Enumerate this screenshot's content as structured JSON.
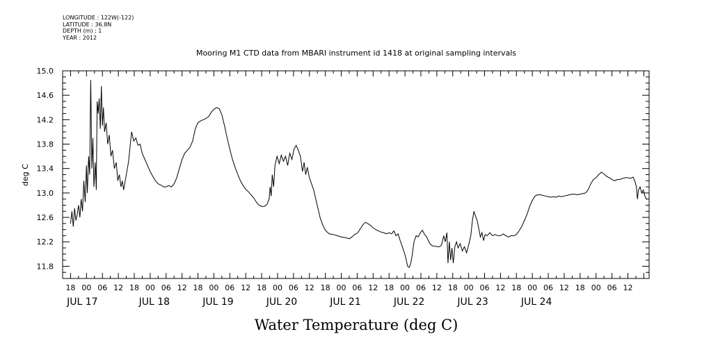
{
  "header": {
    "lines": [
      "LONGITUDE : 122W(-122)",
      "LATITUDE : 36.8N",
      "DEPTH (m) : 1",
      "YEAR : 2012"
    ]
  },
  "chart_data": {
    "type": "line",
    "title": "Mooring M1 CTD data from MBARI instrument id 1418 at original sampling intervals",
    "xlabel": "Water Temperature (deg C)",
    "ylabel": "deg C",
    "ylim": [
      11.6,
      15.0
    ],
    "yticks": [
      "11.8",
      "12.2",
      "12.6",
      "13.0",
      "13.4",
      "13.8",
      "14.2",
      "14.6",
      "15.0"
    ],
    "x_unit": "hours since JUL 17 00:00 (2012)",
    "xlim": [
      -9,
      212
    ],
    "hour_ticks": [
      "18",
      "00",
      "06",
      "12",
      "18",
      "00",
      "06",
      "12",
      "18",
      "00",
      "06",
      "12",
      "18",
      "00",
      "06",
      "12",
      "18",
      "00",
      "06",
      "12",
      "18",
      "00",
      "06",
      "12",
      "18",
      "00",
      "06",
      "12",
      "18",
      "00",
      "06",
      "12",
      "18",
      "00",
      "06",
      "12"
    ],
    "day_labels": [
      "JUL 17",
      "JUL 18",
      "JUL 19",
      "JUL 20",
      "JUL 21",
      "JUL 22",
      "JUL 23",
      "JUL 24"
    ],
    "grid": false,
    "series": [
      {
        "points": [
          [
            -6,
            12.5
          ],
          [
            -5.5,
            12.7
          ],
          [
            -5,
            12.45
          ],
          [
            -4.5,
            12.75
          ],
          [
            -4,
            12.55
          ],
          [
            -3.5,
            12.65
          ],
          [
            -3,
            12.8
          ],
          [
            -2.5,
            12.6
          ],
          [
            -2,
            12.9
          ],
          [
            -1.5,
            12.7
          ],
          [
            -1,
            13.2
          ],
          [
            -0.5,
            12.85
          ],
          [
            0,
            13.45
          ],
          [
            0.3,
            13.0
          ],
          [
            0.8,
            13.6
          ],
          [
            1.2,
            13.3
          ],
          [
            1.6,
            14.85
          ],
          [
            2.0,
            13.4
          ],
          [
            2.4,
            13.9
          ],
          [
            2.8,
            13.1
          ],
          [
            3.3,
            13.5
          ],
          [
            3.7,
            13.05
          ],
          [
            4.0,
            14.5
          ],
          [
            4.4,
            14.3
          ],
          [
            4.8,
            14.55
          ],
          [
            5.2,
            14.05
          ],
          [
            5.6,
            14.75
          ],
          [
            6.0,
            14.1
          ],
          [
            6.4,
            14.4
          ],
          [
            6.8,
            14.0
          ],
          [
            7.4,
            14.15
          ],
          [
            8.0,
            13.8
          ],
          [
            8.6,
            13.95
          ],
          [
            9.2,
            13.6
          ],
          [
            9.8,
            13.7
          ],
          [
            10.5,
            13.4
          ],
          [
            11.2,
            13.5
          ],
          [
            11.8,
            13.2
          ],
          [
            12.4,
            13.3
          ],
          [
            13.0,
            13.1
          ],
          [
            13.5,
            13.2
          ],
          [
            14.0,
            13.05
          ],
          [
            14.6,
            13.2
          ],
          [
            15.2,
            13.35
          ],
          [
            15.8,
            13.5
          ],
          [
            16.4,
            13.75
          ],
          [
            17.0,
            14.0
          ],
          [
            17.8,
            13.85
          ],
          [
            18.6,
            13.9
          ],
          [
            19.4,
            13.78
          ],
          [
            20.2,
            13.8
          ],
          [
            21.0,
            13.65
          ],
          [
            22,
            13.55
          ],
          [
            23,
            13.45
          ],
          [
            24,
            13.35
          ],
          [
            25,
            13.27
          ],
          [
            26,
            13.2
          ],
          [
            27,
            13.15
          ],
          [
            28,
            13.13
          ],
          [
            29,
            13.1
          ],
          [
            30,
            13.1
          ],
          [
            31,
            13.12
          ],
          [
            32,
            13.1
          ],
          [
            33,
            13.15
          ],
          [
            34,
            13.25
          ],
          [
            35,
            13.4
          ],
          [
            36,
            13.55
          ],
          [
            37,
            13.65
          ],
          [
            38,
            13.7
          ],
          [
            39,
            13.75
          ],
          [
            40,
            13.85
          ],
          [
            41,
            14.05
          ],
          [
            42,
            14.15
          ],
          [
            43,
            14.18
          ],
          [
            44,
            14.2
          ],
          [
            45,
            14.22
          ],
          [
            46,
            14.25
          ],
          [
            47,
            14.32
          ],
          [
            48,
            14.37
          ],
          [
            49,
            14.4
          ],
          [
            50,
            14.38
          ],
          [
            51,
            14.28
          ],
          [
            52,
            14.1
          ],
          [
            53,
            13.9
          ],
          [
            54,
            13.72
          ],
          [
            55,
            13.55
          ],
          [
            56,
            13.42
          ],
          [
            57,
            13.3
          ],
          [
            58,
            13.2
          ],
          [
            59,
            13.12
          ],
          [
            60,
            13.06
          ],
          [
            61,
            13.02
          ],
          [
            62,
            12.97
          ],
          [
            63,
            12.92
          ],
          [
            64,
            12.85
          ],
          [
            65,
            12.8
          ],
          [
            66,
            12.78
          ],
          [
            67,
            12.78
          ],
          [
            68,
            12.81
          ],
          [
            68.8,
            12.9
          ],
          [
            69.2,
            13.1
          ],
          [
            69.6,
            12.95
          ],
          [
            70.0,
            13.3
          ],
          [
            70.5,
            13.1
          ],
          [
            71,
            13.45
          ],
          [
            71.8,
            13.6
          ],
          [
            72.6,
            13.48
          ],
          [
            73.4,
            13.62
          ],
          [
            74.2,
            13.52
          ],
          [
            75,
            13.6
          ],
          [
            75.8,
            13.45
          ],
          [
            76.6,
            13.65
          ],
          [
            77.4,
            13.55
          ],
          [
            78.2,
            13.72
          ],
          [
            79,
            13.78
          ],
          [
            79.8,
            13.7
          ],
          [
            80.6,
            13.6
          ],
          [
            81.4,
            13.35
          ],
          [
            82.0,
            13.5
          ],
          [
            82.6,
            13.3
          ],
          [
            83.2,
            13.42
          ],
          [
            84,
            13.25
          ],
          [
            84.8,
            13.15
          ],
          [
            85.6,
            13.05
          ],
          [
            86.4,
            12.9
          ],
          [
            87.2,
            12.75
          ],
          [
            88,
            12.6
          ],
          [
            88.8,
            12.5
          ],
          [
            89.6,
            12.42
          ],
          [
            90.4,
            12.37
          ],
          [
            91.5,
            12.33
          ],
          [
            93,
            12.32
          ],
          [
            94.5,
            12.3
          ],
          [
            96,
            12.28
          ],
          [
            97.5,
            12.27
          ],
          [
            99,
            12.25
          ],
          [
            100,
            12.28
          ],
          [
            101,
            12.32
          ],
          [
            102,
            12.34
          ],
          [
            103,
            12.4
          ],
          [
            104,
            12.47
          ],
          [
            105,
            12.52
          ],
          [
            106,
            12.5
          ],
          [
            107,
            12.47
          ],
          [
            108,
            12.43
          ],
          [
            109,
            12.4
          ],
          [
            110,
            12.38
          ],
          [
            111,
            12.36
          ],
          [
            112,
            12.35
          ],
          [
            113,
            12.33
          ],
          [
            114,
            12.35
          ],
          [
            115,
            12.33
          ],
          [
            115.8,
            12.38
          ],
          [
            116.6,
            12.3
          ],
          [
            117.4,
            12.33
          ],
          [
            118.2,
            12.22
          ],
          [
            119,
            12.12
          ],
          [
            119.8,
            12.02
          ],
          [
            120.4,
            11.92
          ],
          [
            121.0,
            11.8
          ],
          [
            121.6,
            11.78
          ],
          [
            122.2,
            11.85
          ],
          [
            122.8,
            12.0
          ],
          [
            123.4,
            12.2
          ],
          [
            124.2,
            12.3
          ],
          [
            125,
            12.28
          ],
          [
            125.8,
            12.35
          ],
          [
            126.6,
            12.39
          ],
          [
            127.4,
            12.32
          ],
          [
            128.2,
            12.28
          ],
          [
            129,
            12.2
          ],
          [
            129.8,
            12.15
          ],
          [
            130.6,
            12.13
          ],
          [
            131.4,
            12.13
          ],
          [
            132.2,
            12.12
          ],
          [
            133,
            12.12
          ],
          [
            133.8,
            12.15
          ],
          [
            134.6,
            12.3
          ],
          [
            135.2,
            12.2
          ],
          [
            135.8,
            12.35
          ],
          [
            136.2,
            11.85
          ],
          [
            136.7,
            12.2
          ],
          [
            137.2,
            11.9
          ],
          [
            137.7,
            12.1
          ],
          [
            138.2,
            11.85
          ],
          [
            138.8,
            12.12
          ],
          [
            139.4,
            12.2
          ],
          [
            140,
            12.1
          ],
          [
            140.8,
            12.17
          ],
          [
            141.6,
            12.05
          ],
          [
            142.4,
            12.12
          ],
          [
            143.2,
            12.02
          ],
          [
            144,
            12.15
          ],
          [
            144.8,
            12.3
          ],
          [
            145.4,
            12.55
          ],
          [
            146,
            12.7
          ],
          [
            146.6,
            12.62
          ],
          [
            147.2,
            12.55
          ],
          [
            147.8,
            12.42
          ],
          [
            148.4,
            12.28
          ],
          [
            149,
            12.35
          ],
          [
            149.6,
            12.22
          ],
          [
            150.2,
            12.32
          ],
          [
            151,
            12.3
          ],
          [
            152,
            12.35
          ],
          [
            153,
            12.3
          ],
          [
            154,
            12.32
          ],
          [
            155,
            12.3
          ],
          [
            156,
            12.3
          ],
          [
            157,
            12.33
          ],
          [
            158,
            12.3
          ],
          [
            159,
            12.28
          ],
          [
            160,
            12.3
          ],
          [
            161,
            12.3
          ],
          [
            162,
            12.32
          ],
          [
            163,
            12.38
          ],
          [
            164,
            12.45
          ],
          [
            165,
            12.55
          ],
          [
            166,
            12.65
          ],
          [
            167,
            12.78
          ],
          [
            168,
            12.88
          ],
          [
            169,
            12.95
          ],
          [
            170,
            12.97
          ],
          [
            171,
            12.97
          ],
          [
            172,
            12.96
          ],
          [
            173,
            12.95
          ],
          [
            174,
            12.94
          ],
          [
            175,
            12.93
          ],
          [
            176,
            12.94
          ],
          [
            177,
            12.93
          ],
          [
            178,
            12.95
          ],
          [
            179,
            12.94
          ],
          [
            180,
            12.95
          ],
          [
            181,
            12.96
          ],
          [
            182,
            12.97
          ],
          [
            183,
            12.98
          ],
          [
            184,
            12.98
          ],
          [
            185,
            12.97
          ],
          [
            186,
            12.98
          ],
          [
            187,
            12.99
          ],
          [
            188,
            13.0
          ],
          [
            189,
            13.05
          ],
          [
            190,
            13.15
          ],
          [
            191,
            13.22
          ],
          [
            192,
            13.25
          ],
          [
            193,
            13.3
          ],
          [
            194,
            13.34
          ],
          [
            195,
            13.31
          ],
          [
            196,
            13.27
          ],
          [
            197,
            13.25
          ],
          [
            198,
            13.22
          ],
          [
            199,
            13.2
          ],
          [
            200,
            13.22
          ],
          [
            201,
            13.22
          ],
          [
            202,
            13.24
          ],
          [
            203,
            13.25
          ],
          [
            204,
            13.25
          ],
          [
            205,
            13.24
          ],
          [
            206,
            13.26
          ],
          [
            206.6,
            13.2
          ],
          [
            207.2,
            13.1
          ],
          [
            207.6,
            12.9
          ],
          [
            208.0,
            13.05
          ],
          [
            208.6,
            13.1
          ],
          [
            209.2,
            13.0
          ],
          [
            209.8,
            13.05
          ],
          [
            210.4,
            12.95
          ],
          [
            211,
            12.9
          ]
        ]
      }
    ]
  }
}
